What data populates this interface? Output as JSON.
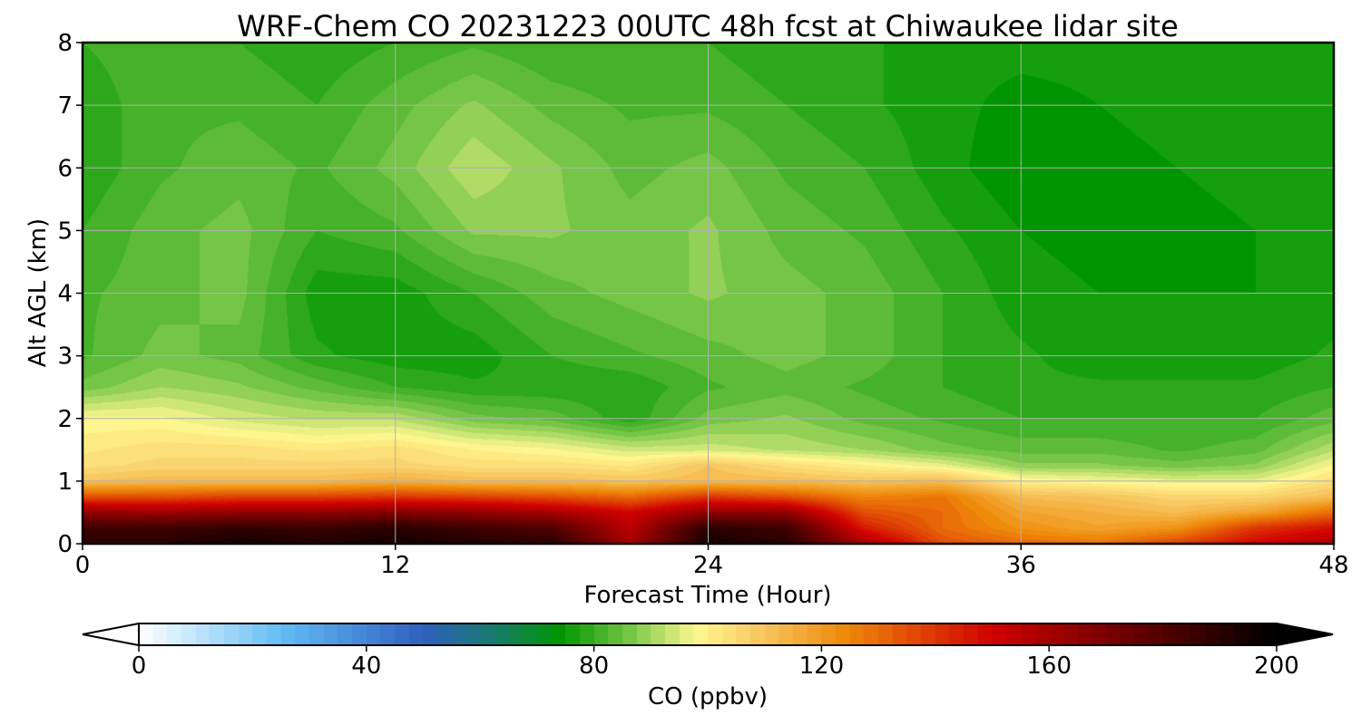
{
  "chart_data": {
    "type": "heatmap",
    "subtype": "filled-contour time-height cross section",
    "title": "WRF-Chem CO  20231223 00UTC 48h fcst at Chiwaukee lidar site",
    "xlabel": "Forecast Time (Hour)",
    "ylabel": "Alt AGL (km)",
    "xlim": [
      0,
      48
    ],
    "ylim": [
      0,
      8
    ],
    "xticks": [
      "0",
      "12",
      "24",
      "36",
      "48"
    ],
    "yticks": [
      "0",
      "1",
      "2",
      "3",
      "4",
      "5",
      "6",
      "7",
      "8"
    ],
    "grid": true,
    "colorbar": {
      "label": "CO  (ppbv)",
      "range": [
        0,
        200
      ],
      "ticks": [
        "0",
        "40",
        "80",
        "120",
        "160",
        "200"
      ],
      "extend": "both",
      "orientation": "horizontal",
      "color_stops": [
        {
          "v": 0,
          "c": "#ffffff"
        },
        {
          "v": 25,
          "c": "#63bdf6"
        },
        {
          "v": 50,
          "c": "#2f5fbf"
        },
        {
          "v": 62,
          "c": "#1a7a70"
        },
        {
          "v": 74,
          "c": "#009600"
        },
        {
          "v": 86,
          "c": "#72c445"
        },
        {
          "v": 98,
          "c": "#fff891"
        },
        {
          "v": 110,
          "c": "#f7c35c"
        },
        {
          "v": 124,
          "c": "#ef8a0a"
        },
        {
          "v": 150,
          "c": "#d10000"
        },
        {
          "v": 170,
          "c": "#7a0000"
        },
        {
          "v": 200,
          "c": "#000000"
        }
      ]
    },
    "field": {
      "units": "ppbv",
      "x": [
        0,
        3,
        6,
        9,
        12,
        15,
        18,
        21,
        24,
        27,
        30,
        33,
        36,
        39,
        42,
        45,
        48
      ],
      "y": [
        0,
        0.25,
        0.5,
        0.75,
        1,
        1.25,
        1.5,
        2,
        2.5,
        3,
        4,
        5,
        6,
        7,
        8
      ],
      "values": [
        [
          190,
          190,
          195,
          192,
          195,
          192,
          190,
          160,
          195,
          190,
          160,
          135,
          130,
          128,
          138,
          150,
          158
        ],
        [
          185,
          185,
          188,
          186,
          190,
          185,
          180,
          155,
          190,
          185,
          145,
          130,
          122,
          118,
          122,
          140,
          148
        ],
        [
          165,
          162,
          165,
          165,
          168,
          165,
          160,
          150,
          165,
          165,
          135,
          130,
          118,
          115,
          112,
          118,
          130
        ],
        [
          135,
          135,
          138,
          138,
          140,
          138,
          135,
          130,
          140,
          135,
          125,
          128,
          112,
          110,
          106,
          106,
          112
        ],
        [
          110,
          112,
          112,
          112,
          115,
          112,
          112,
          110,
          112,
          112,
          110,
          112,
          100,
          98,
          96,
          96,
          104
        ],
        [
          104,
          106,
          106,
          106,
          106,
          104,
          104,
          102,
          110,
          104,
          100,
          96,
          88,
          88,
          86,
          88,
          98
        ],
        [
          102,
          104,
          104,
          102,
          104,
          100,
          98,
          94,
          94,
          92,
          90,
          86,
          84,
          84,
          82,
          84,
          92
        ],
        [
          98,
          98,
          94,
          92,
          92,
          86,
          84,
          78,
          86,
          88,
          84,
          82,
          80,
          80,
          80,
          80,
          84
        ],
        [
          86,
          90,
          88,
          84,
          80,
          78,
          78,
          78,
          82,
          84,
          82,
          80,
          78,
          78,
          78,
          78,
          80
        ],
        [
          82,
          86,
          84,
          78,
          76,
          76,
          80,
          82,
          84,
          86,
          84,
          80,
          78,
          76,
          76,
          76,
          78
        ],
        [
          82,
          84,
          86,
          76,
          76,
          80,
          84,
          86,
          88,
          86,
          84,
          80,
          76,
          75,
          75,
          75,
          76
        ],
        [
          80,
          84,
          86,
          80,
          82,
          88,
          88,
          86,
          88,
          84,
          82,
          78,
          75,
          74,
          74,
          75,
          76
        ],
        [
          78,
          82,
          84,
          82,
          86,
          92,
          88,
          84,
          86,
          82,
          80,
          76,
          73,
          74,
          75,
          76,
          76
        ],
        [
          78,
          82,
          82,
          80,
          84,
          88,
          84,
          82,
          82,
          80,
          78,
          76,
          74,
          75,
          76,
          76,
          76
        ],
        [
          80,
          82,
          80,
          78,
          80,
          82,
          80,
          80,
          80,
          78,
          78,
          76,
          76,
          76,
          76,
          77,
          77
        ]
      ]
    }
  }
}
